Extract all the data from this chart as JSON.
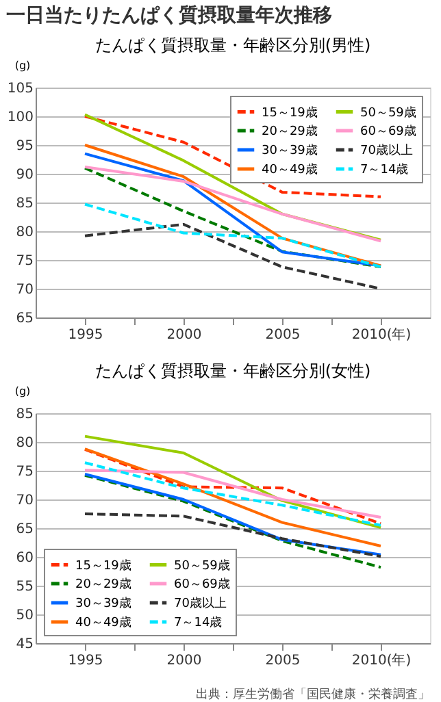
{
  "chart_data": [
    {
      "type": "line",
      "title": "一日当たりたんぱく質摂取量年次推移",
      "subtitle": "たんぱく質摂取量・年齢区分別(男性)",
      "ylabel": "(g)",
      "x": [
        1995,
        2000,
        2005,
        2010
      ],
      "xlim": [
        1992.5,
        2012.5
      ],
      "xticks": [
        1995,
        {
          "value": 1997.5,
          "label": null
        },
        2000,
        {
          "value": 2002.5,
          "label": null
        },
        2005,
        {
          "value": 2007.5,
          "label": null
        },
        {
          "value": 2010,
          "label": "2010(年)"
        }
      ],
      "ylim": [
        65,
        105
      ],
      "yticks": [
        65,
        70,
        75,
        80,
        85,
        90,
        95,
        100,
        105
      ],
      "grid": "y",
      "legend": "top right",
      "marker": "none",
      "series": [
        {
          "name": "15～19歳",
          "color": "#ff2a00",
          "line_style": "dashed",
          "values": [
            100,
            95.5,
            86.8,
            86
          ]
        },
        {
          "name": "20～29歳",
          "color": "#007a00",
          "line_style": "dashed",
          "values": [
            91,
            83.5,
            76.5,
            73.8
          ]
        },
        {
          "name": "30～39歳",
          "color": "#0066ff",
          "line_style": "solid",
          "values": [
            93.5,
            88.8,
            76.4,
            74
          ]
        },
        {
          "name": "40～49歳",
          "color": "#ff6a00",
          "line_style": "solid",
          "values": [
            95,
            89.5,
            78.8,
            74
          ]
        },
        {
          "name": "50～59歳",
          "color": "#99cc00",
          "line_style": "solid",
          "values": [
            100.3,
            92.3,
            83,
            78.5
          ]
        },
        {
          "name": "60～69歳",
          "color": "#ff99cc",
          "line_style": "solid",
          "values": [
            91.2,
            88.7,
            83,
            78.3
          ]
        },
        {
          "name": "70歳以上",
          "color": "#333333",
          "line_style": "dashed",
          "values": [
            79.2,
            81.2,
            73.8,
            70
          ]
        },
        {
          "name": "7～14歳",
          "color": "#00e5ff",
          "line_style": "dashed",
          "values": [
            84.7,
            79.7,
            78.8,
            73.8
          ]
        }
      ]
    },
    {
      "type": "line",
      "title": "たんぱく質摂取量・年齢区分別(女性)",
      "ylabel": "(g)",
      "annotations": [
        "出典：厚生労働省「国民健康・栄養調査」"
      ],
      "x": [
        1995,
        2000,
        2005,
        2010
      ],
      "xlim": [
        1992.5,
        2012.5
      ],
      "xticks": [
        1995,
        {
          "value": 1997.5,
          "label": null
        },
        2000,
        {
          "value": 2002.5,
          "label": null
        },
        2005,
        {
          "value": 2007.5,
          "label": null
        },
        {
          "value": 2010,
          "label": "2010(年)"
        }
      ],
      "ylim": [
        45,
        85
      ],
      "yticks": [
        45,
        50,
        55,
        60,
        65,
        70,
        75,
        80,
        85
      ],
      "grid": "y",
      "legend": "bottom left",
      "marker": "none",
      "series": [
        {
          "name": "15～19歳",
          "color": "#ff2a00",
          "line_style": "dashed",
          "values": [
            78.7,
            72.2,
            72,
            65.8
          ]
        },
        {
          "name": "20～29歳",
          "color": "#007a00",
          "line_style": "dashed",
          "values": [
            74.2,
            69.7,
            62.8,
            58.2
          ]
        },
        {
          "name": "30～39歳",
          "color": "#0066ff",
          "line_style": "solid",
          "values": [
            74.4,
            70,
            63,
            60.4
          ]
        },
        {
          "name": "40～49歳",
          "color": "#ff6a00",
          "line_style": "solid",
          "values": [
            78.8,
            72.7,
            66,
            61.9
          ]
        },
        {
          "name": "50～59歳",
          "color": "#99cc00",
          "line_style": "solid",
          "values": [
            81,
            78.1,
            69.8,
            65.1
          ]
        },
        {
          "name": "60～69歳",
          "color": "#ff99cc",
          "line_style": "solid",
          "values": [
            75.1,
            74.7,
            70,
            66.9
          ]
        },
        {
          "name": "70歳以上",
          "color": "#333333",
          "line_style": "dashed",
          "values": [
            67.5,
            67.1,
            63.2,
            60.1
          ]
        },
        {
          "name": "7～14歳",
          "color": "#00e5ff",
          "line_style": "dashed",
          "values": [
            76.4,
            72,
            69,
            65.5
          ]
        }
      ]
    }
  ]
}
